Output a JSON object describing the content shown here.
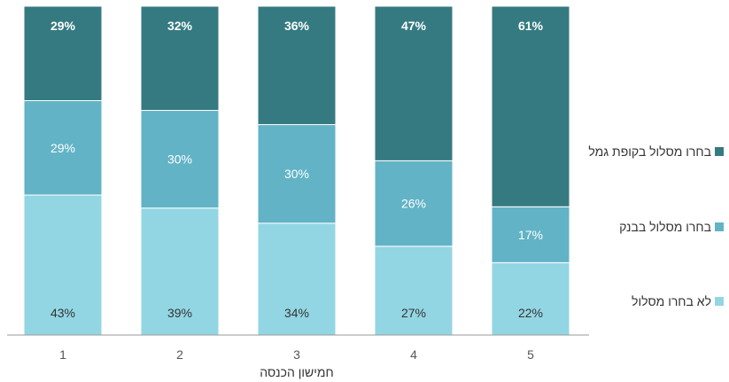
{
  "chart_data": {
    "type": "bar",
    "stacked": true,
    "percent_stacked": true,
    "xlabel": "חמישון הכנסה",
    "ylabel": "",
    "ylim": [
      0,
      100
    ],
    "grid": false,
    "legend_position": "right",
    "categories": [
      "1",
      "2",
      "3",
      "4",
      "5"
    ],
    "series": [
      {
        "name": "לא בחרו מסלול",
        "values": [
          43,
          39,
          34,
          27,
          22
        ],
        "labels": [
          "43%",
          "39%",
          "34%",
          "27%",
          "22%"
        ],
        "color": "#93d6e3",
        "label_color": "#333333"
      },
      {
        "name": "בחרו מסלול בבנק",
        "values": [
          29,
          30,
          30,
          26,
          17
        ],
        "labels": [
          "29%",
          "30%",
          "30%",
          "26%",
          "17%"
        ],
        "color": "#62b3c6",
        "label_color": "#ffffff"
      },
      {
        "name": "בחרו מסלול בקופת גמל",
        "values": [
          29,
          32,
          36,
          47,
          61
        ],
        "labels": [
          "29%",
          "32%",
          "36%",
          "47%",
          "61%"
        ],
        "color": "#357a81",
        "label_color": "#ffffff"
      }
    ]
  }
}
